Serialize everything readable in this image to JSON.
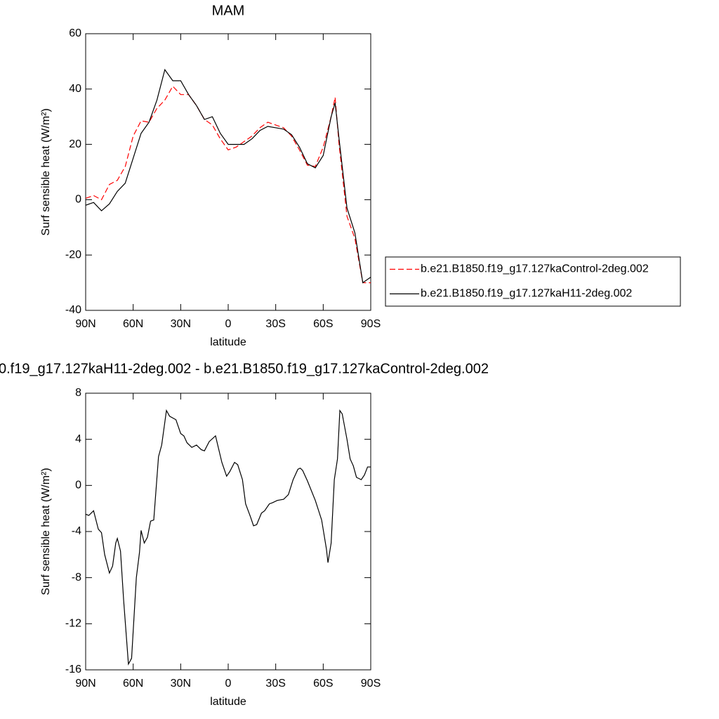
{
  "chart_data": [
    {
      "type": "line",
      "title": "MAM",
      "x_label": "latitude",
      "y_label": "Surf sensible heat (W/m²)",
      "x": [
        90,
        85,
        80,
        75,
        70,
        65,
        60,
        55,
        50,
        45,
        40,
        35,
        30,
        25,
        20,
        15,
        10,
        5,
        0,
        -5,
        -10,
        -15,
        -20,
        -25,
        -30,
        -35,
        -40,
        -45,
        -50,
        -55,
        -60,
        -65,
        -67.5,
        -70,
        -75,
        -80,
        -85,
        -90
      ],
      "series": [
        {
          "name": "b.e21.B1850.f19_g17.127kaControl-2deg.002",
          "color": "#ff0000",
          "dash": true,
          "values": [
            0.5,
            1.5,
            0,
            5.5,
            7,
            12,
            23,
            28.5,
            28,
            33,
            36,
            41,
            38,
            38,
            34,
            29,
            27,
            22,
            18,
            19,
            21,
            23,
            26,
            28,
            27,
            26,
            23,
            18,
            12.5,
            12,
            19,
            30,
            37,
            20,
            -6,
            -14,
            -30,
            -30
          ]
        },
        {
          "name": "b.e21.B1850.f19_g17.127kaH11-2deg.002",
          "color": "#000000",
          "dash": false,
          "values": [
            -2,
            -1,
            -4,
            -1.5,
            3,
            6,
            15,
            24,
            28,
            36,
            47,
            43,
            43,
            38,
            34,
            29,
            30,
            24,
            20,
            20,
            20,
            22,
            25,
            26.5,
            26,
            25.5,
            23.5,
            19,
            13,
            11.5,
            16,
            30,
            35,
            22,
            -3,
            -12,
            -30,
            -28
          ]
        }
      ],
      "xlim": [
        90,
        -90
      ],
      "xticks": [
        {
          "value": 90,
          "label": "90N"
        },
        {
          "value": 60,
          "label": "60N"
        },
        {
          "value": 30,
          "label": "30N"
        },
        0,
        {
          "value": -30,
          "label": "30S"
        },
        {
          "value": -60,
          "label": "60S"
        },
        {
          "value": -90,
          "label": "90S"
        }
      ],
      "ylim": [
        -40,
        60
      ],
      "yticks": [
        -40,
        -20,
        0,
        20,
        40,
        60
      ],
      "legend": "right"
    },
    {
      "type": "line",
      "title": "0.f19_g17.127kaH11-2deg.002 - b.e21.B1850.f19_g17.127kaControl-2deg.002",
      "x_label": "latitude",
      "y_label": "Surf sensible heat (W/m²)",
      "x": [
        90,
        88,
        85,
        82,
        80,
        78,
        75,
        73,
        71,
        70,
        68,
        66,
        63,
        61,
        58,
        56,
        55,
        53,
        51,
        49,
        47,
        44,
        42,
        40,
        39,
        37,
        33,
        30,
        28,
        26,
        23,
        20,
        17,
        15,
        12,
        8,
        4,
        1,
        -1,
        -4,
        -6,
        -9,
        -11,
        -14,
        -16,
        -18,
        -21,
        -23,
        -26,
        -28,
        -31,
        -35,
        -38,
        -41,
        -44,
        -45.5,
        -47,
        -50,
        -55,
        -59,
        -62,
        -63,
        -65,
        -67,
        -69,
        -70.5,
        -72,
        -75,
        -77,
        -79,
        -81,
        -84,
        -86,
        -88,
        -90
      ],
      "series": [
        {
          "color": "#000000",
          "values": [
            -2.5,
            -2.6,
            -2.2,
            -3.8,
            -4.1,
            -6,
            -7.6,
            -7,
            -5,
            -4.6,
            -5.7,
            -10,
            -15.5,
            -15,
            -8,
            -5.8,
            -3.9,
            -5,
            -4.5,
            -3.1,
            -3,
            2.5,
            3.5,
            5.5,
            6.5,
            6,
            5.7,
            4.5,
            4.3,
            3.7,
            3.3,
            3.5,
            3.1,
            3,
            3.8,
            4.3,
            2,
            0.8,
            1.2,
            2,
            1.8,
            0.5,
            -1.6,
            -2.7,
            -3.5,
            -3.4,
            -2.4,
            -2.2,
            -1.6,
            -1.5,
            -1.3,
            -1.2,
            -0.8,
            0.5,
            1.4,
            1.5,
            1.3,
            0.4,
            -1.3,
            -3,
            -5.5,
            -6.7,
            -5,
            0.5,
            2.3,
            6.5,
            6.2,
            4,
            2.3,
            1.7,
            0.7,
            0.5,
            0.9,
            1.6,
            1.6
          ]
        }
      ],
      "xlim": [
        90,
        -90
      ],
      "xticks": [
        {
          "value": 90,
          "label": "90N"
        },
        {
          "value": 60,
          "label": "60N"
        },
        {
          "value": 30,
          "label": "30N"
        },
        0,
        {
          "value": -30,
          "label": "30S"
        },
        {
          "value": -60,
          "label": "60S"
        },
        {
          "value": -90,
          "label": "90S"
        }
      ],
      "ylim": [
        -16,
        8
      ],
      "yticks": [
        -16,
        -12,
        -8,
        -4,
        0,
        4,
        8
      ]
    }
  ]
}
